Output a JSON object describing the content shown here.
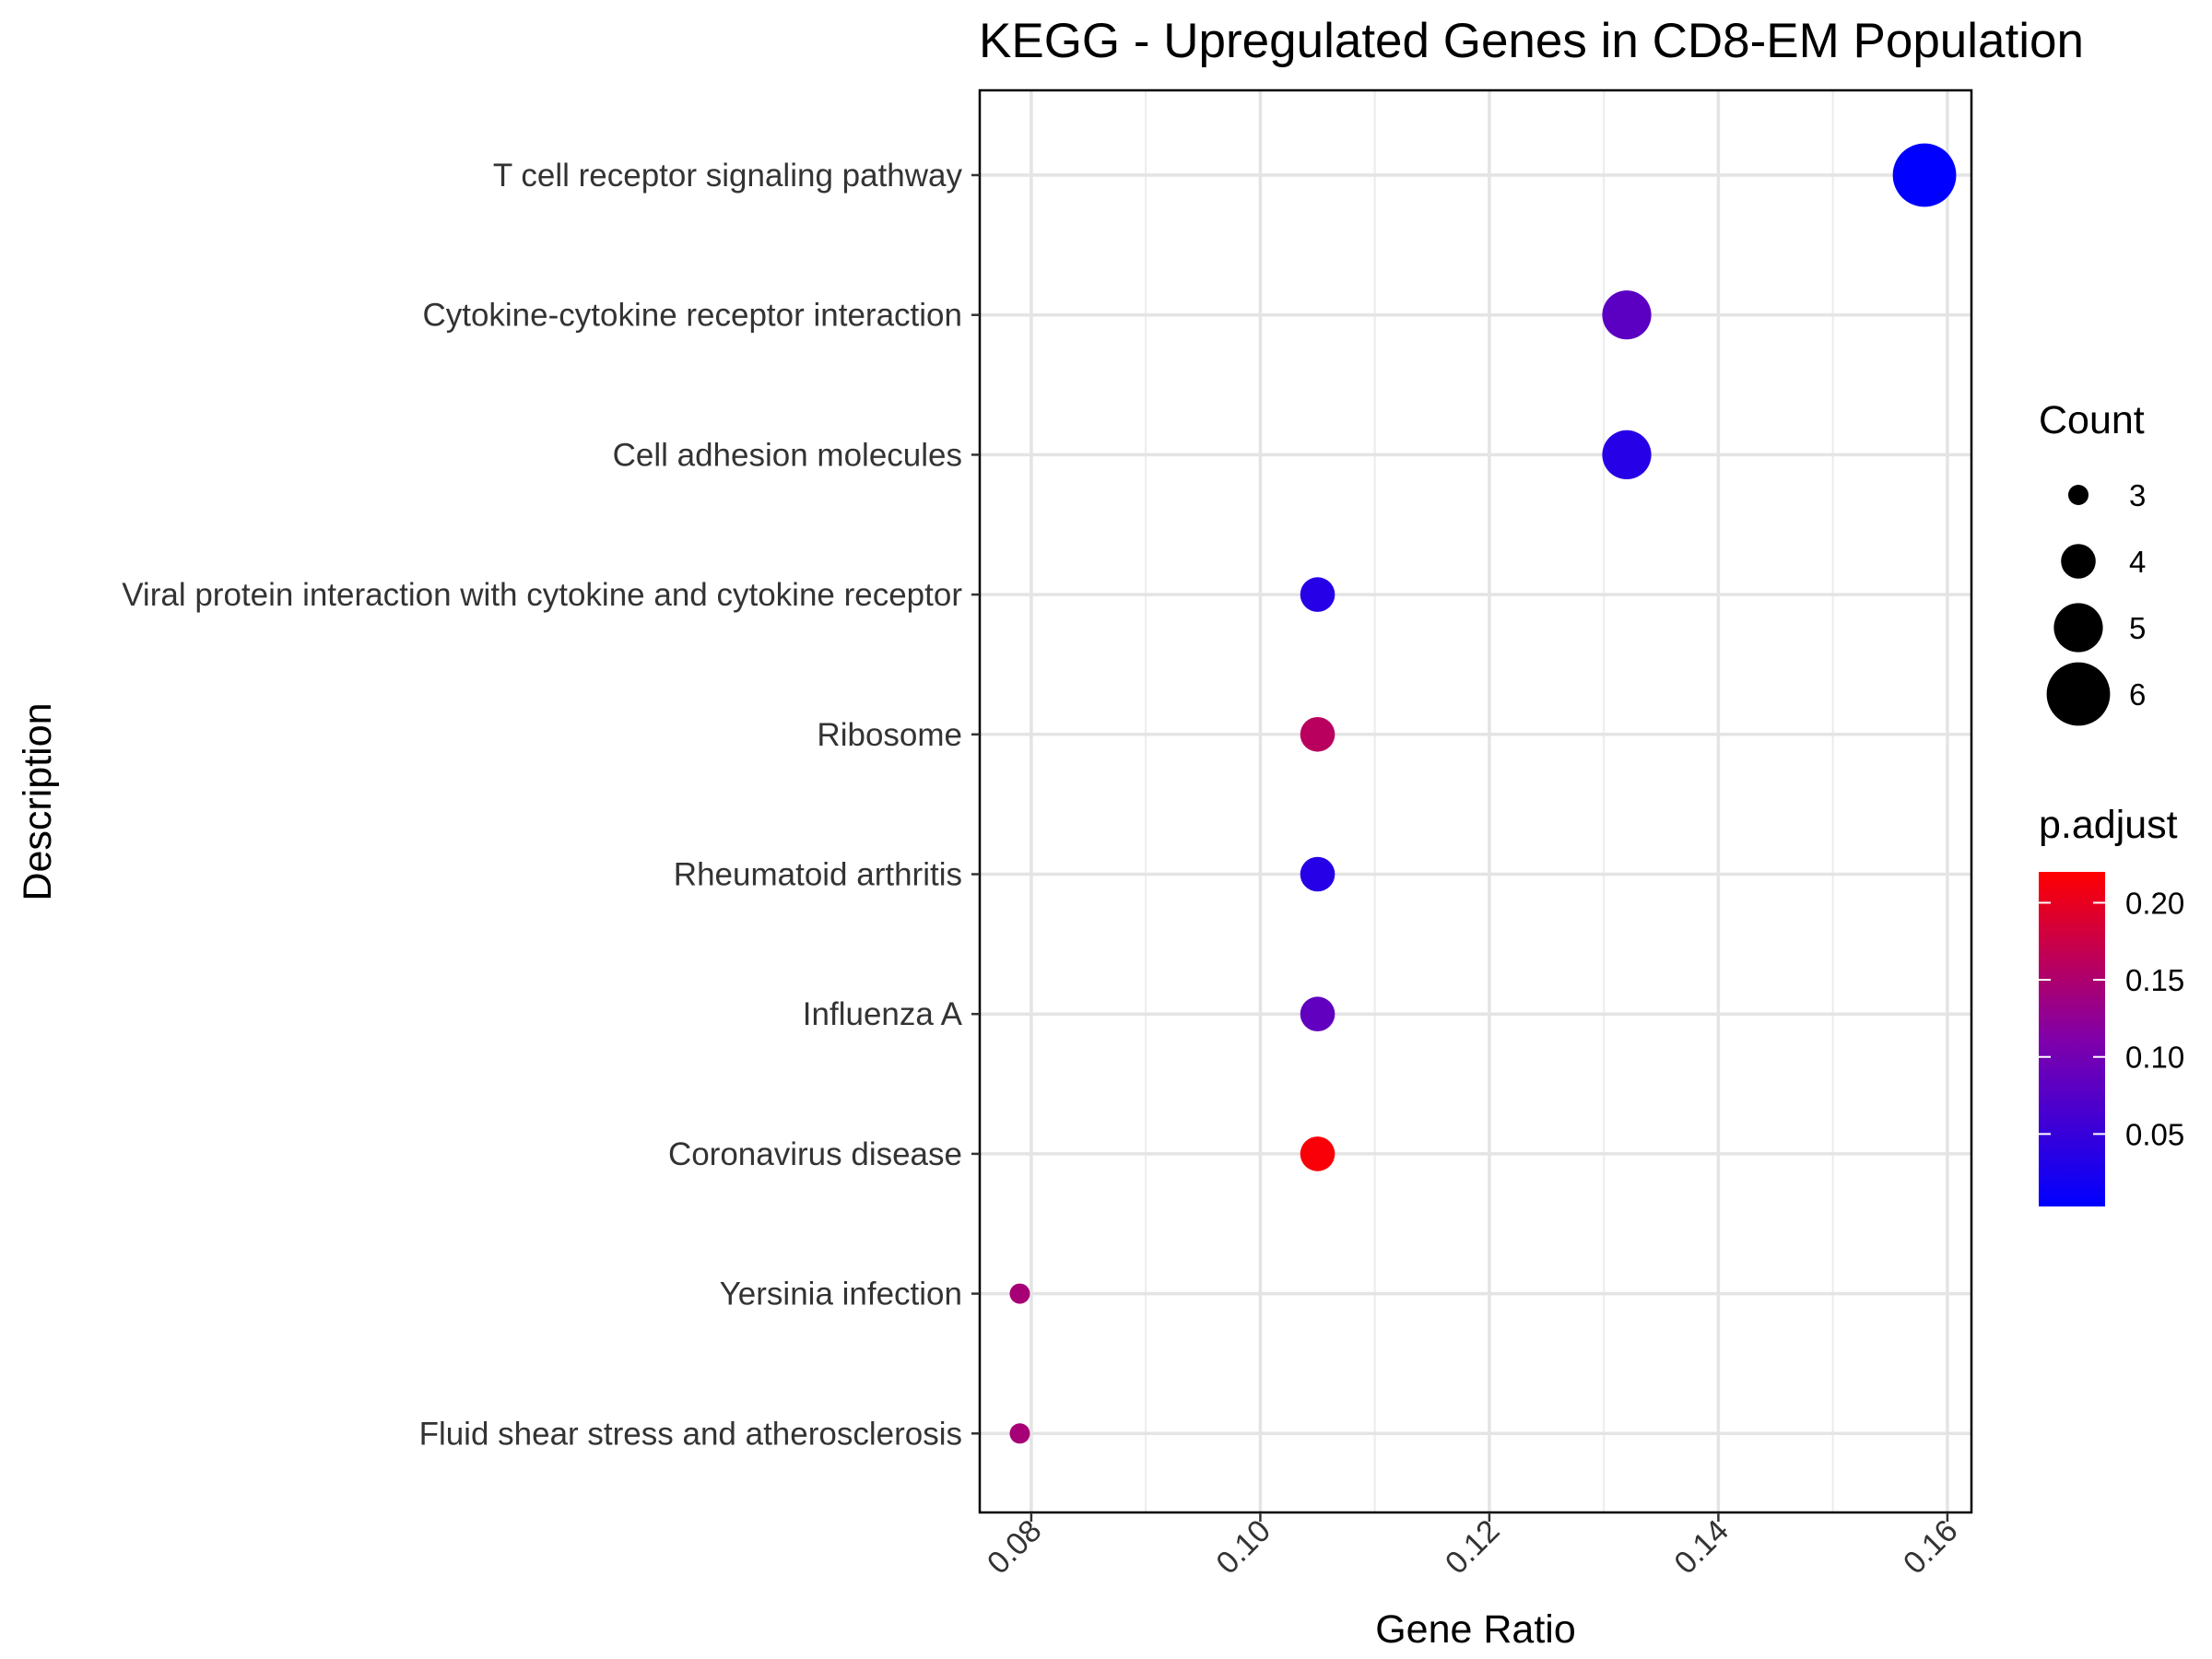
{
  "chart_data": {
    "type": "scatter",
    "title": "KEGG - Upregulated Genes in CD8-EM Population",
    "xlabel": "Gene Ratio",
    "ylabel": "Description",
    "xlim": [
      0.0755,
      0.1621
    ],
    "x_ticks": [
      "0.08",
      "0.10",
      "0.12",
      "0.14",
      "0.16"
    ],
    "grid": true,
    "legend_placement": "right",
    "categories": [
      "T cell receptor signaling pathway",
      "Cytokine-cytokine receptor interaction",
      "Cell adhesion molecules",
      "Viral protein interaction with cytokine and cytokine receptor",
      "Ribosome",
      "Rheumatoid arthritis",
      "Influenza A",
      "Coronavirus disease",
      "Yersinia infection",
      "Fluid shear stress and atherosclerosis"
    ],
    "points": [
      {
        "description": "T cell receptor signaling pathway",
        "gene_ratio": 0.158,
        "count": 6,
        "p_adjust": 0.003
      },
      {
        "description": "Cytokine-cytokine receptor interaction",
        "gene_ratio": 0.132,
        "count": 5,
        "p_adjust": 0.08
      },
      {
        "description": "Cell adhesion molecules",
        "gene_ratio": 0.132,
        "count": 5,
        "p_adjust": 0.035
      },
      {
        "description": "Viral protein interaction with cytokine and cytokine receptor",
        "gene_ratio": 0.105,
        "count": 4,
        "p_adjust": 0.035
      },
      {
        "description": "Ribosome",
        "gene_ratio": 0.105,
        "count": 4,
        "p_adjust": 0.16
      },
      {
        "description": "Rheumatoid arthritis",
        "gene_ratio": 0.105,
        "count": 4,
        "p_adjust": 0.035
      },
      {
        "description": "Influenza A",
        "gene_ratio": 0.105,
        "count": 4,
        "p_adjust": 0.085
      },
      {
        "description": "Coronavirus disease",
        "gene_ratio": 0.105,
        "count": 4,
        "p_adjust": 0.215
      },
      {
        "description": "Yersinia infection",
        "gene_ratio": 0.079,
        "count": 3,
        "p_adjust": 0.145
      },
      {
        "description": "Fluid shear stress and atherosclerosis",
        "gene_ratio": 0.079,
        "count": 3,
        "p_adjust": 0.145
      }
    ],
    "size_legend": {
      "title": "Count",
      "values": [
        3,
        4,
        5,
        6
      ],
      "labels": [
        "3",
        "4",
        "5",
        "6"
      ]
    },
    "color_legend": {
      "title": "p.adjust",
      "range": [
        0.003,
        0.22
      ],
      "ticks": [
        0.05,
        0.1,
        0.15,
        0.2
      ],
      "labels": [
        "0.05",
        "0.10",
        "0.15",
        "0.20"
      ],
      "low_color": "#0000ff",
      "high_color": "#ff0000"
    }
  }
}
